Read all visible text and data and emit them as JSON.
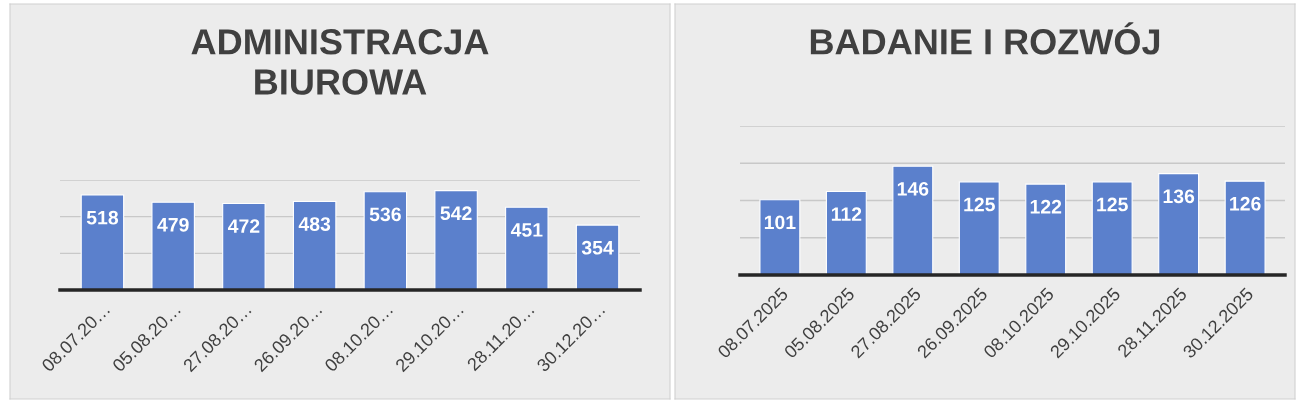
{
  "chart_data": [
    {
      "type": "bar",
      "title": "ADMINISTRACJA\nBIUROWA",
      "categories": [
        "08.07.20…",
        "05.08.20…",
        "27.08.20…",
        "26.09.20…",
        "08.10.20…",
        "29.10.20…",
        "28.11.20…",
        "30.12.20…"
      ],
      "values": [
        518,
        479,
        472,
        483,
        536,
        542,
        451,
        354
      ],
      "color": "#5b80cc",
      "data_labels": true,
      "ylim": [
        0,
        600
      ],
      "yticks": [
        {
          "value": 0,
          "label": null
        },
        {
          "value": 200,
          "label": null
        },
        {
          "value": 400,
          "label": null
        },
        {
          "value": 600,
          "label": null
        }
      ],
      "grid": "y",
      "tick_labels": "x"
    },
    {
      "type": "bar",
      "title": "BADANIE I ROZWÓJ",
      "categories": [
        "08.07.2025",
        "05.08.2025",
        "27.08.2025",
        "26.09.2025",
        "08.10.2025",
        "29.10.2025",
        "28.11.2025",
        "30.12.2025"
      ],
      "values": [
        101,
        112,
        146,
        125,
        122,
        125,
        136,
        126
      ],
      "color": "#5b80cc",
      "data_labels": true,
      "ylim": [
        0,
        200
      ],
      "yticks": [
        {
          "value": 0,
          "label": null
        },
        {
          "value": 50,
          "label": null
        },
        {
          "value": 100,
          "label": null
        },
        {
          "value": 150,
          "label": null
        },
        {
          "value": 200,
          "label": null
        }
      ],
      "grid": "y",
      "tick_labels": "x"
    }
  ]
}
